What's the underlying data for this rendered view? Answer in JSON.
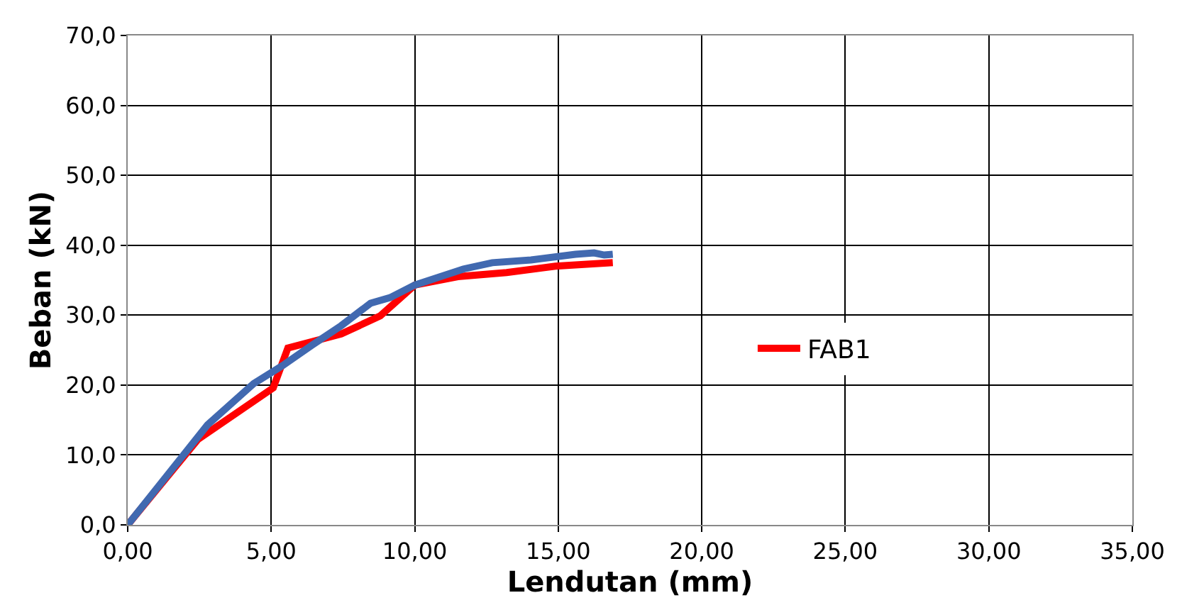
{
  "chart_data": {
    "type": "line",
    "xlabel": "Lendutan (mm)",
    "ylabel": "Beban (kN)",
    "xlim": [
      0,
      35
    ],
    "ylim": [
      0,
      70
    ],
    "xticks": [
      {
        "value": 0,
        "label": "0,00"
      },
      {
        "value": 5,
        "label": "5,00"
      },
      {
        "value": 10,
        "label": "10,00"
      },
      {
        "value": 15,
        "label": "15,00"
      },
      {
        "value": 20,
        "label": "20,00"
      },
      {
        "value": 25,
        "label": "25,00"
      },
      {
        "value": 30,
        "label": "30,00"
      },
      {
        "value": 35,
        "label": "35,00"
      }
    ],
    "yticks": [
      {
        "value": 0,
        "label": "0,0"
      },
      {
        "value": 10,
        "label": "10,0"
      },
      {
        "value": 20,
        "label": "20,0"
      },
      {
        "value": 30,
        "label": "30,0"
      },
      {
        "value": 40,
        "label": "40,0"
      },
      {
        "value": 50,
        "label": "50,0"
      },
      {
        "value": 60,
        "label": "60,0"
      },
      {
        "value": 70,
        "label": "70,0"
      }
    ],
    "grid": true,
    "legend": "right",
    "marker": "none",
    "line_style": "solid",
    "series": [
      {
        "name": "FAB1",
        "color": "#ff0000",
        "x": [
          0,
          2.44,
          5.07,
          5.58,
          7.44,
          8.8,
          10.0,
          11.5,
          13.2,
          14.9,
          16.9
        ],
        "values": [
          0,
          12.2,
          19.6,
          25.3,
          27.3,
          29.9,
          34.3,
          35.5,
          36.1,
          37.0,
          37.5
        ]
      },
      {
        "color": "#4169b0",
        "x": [
          0,
          2.78,
          4.39,
          5.4,
          6.42,
          7.44,
          8.46,
          9.14,
          10.0,
          11.7,
          12.7,
          14.05,
          15.6,
          16.25,
          16.6,
          16.9
        ],
        "values": [
          0,
          14.3,
          20.2,
          22.8,
          25.7,
          28.5,
          31.7,
          32.5,
          34.3,
          36.6,
          37.5,
          37.9,
          38.7,
          38.9,
          38.6,
          38.7
        ]
      }
    ]
  }
}
